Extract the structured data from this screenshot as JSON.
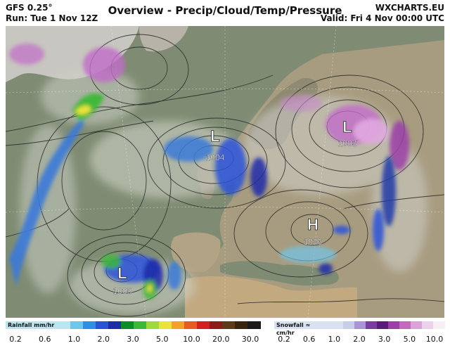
{
  "header": {
    "model": "GFS 0.25°",
    "run": "Run: Tue 1 Nov 12Z",
    "title": "Overview - Precip/Cloud/Temp/Pressure",
    "site": "WXCHARTS.EU",
    "valid": "Valid: Fri 4 Nov 00:00 UTC"
  },
  "pressure_systems": [
    {
      "type": "L",
      "value": "1004"
    },
    {
      "type": "L",
      "value": "1003"
    },
    {
      "type": "H",
      "value": "1026"
    },
    {
      "type": "L",
      "value": "1005"
    }
  ],
  "legend": {
    "rainfall": {
      "title": "Rainfall mm/hr",
      "colors": [
        "#b9e6ef",
        "#70c6ea",
        "#2f8ee6",
        "#2a52d8",
        "#1c2ba8",
        "#0e8c28",
        "#3fb83a",
        "#9fda3a",
        "#e8e43a",
        "#f2a227",
        "#ea5a24",
        "#d41f1f",
        "#8e1a1a",
        "#5c3a1a",
        "#3a2410",
        "#1a1a1a"
      ],
      "ticks": [
        "0.2",
        "0.6",
        "1.0",
        "2.0",
        "3.0",
        "5.0",
        "10.0",
        "20.0",
        "30.0"
      ]
    },
    "snowfall": {
      "title": "Snowfall ≈ cm/hr",
      "colors": [
        "#d9e2f2",
        "#c6cfe9",
        "#a795d6",
        "#7b3ca0",
        "#5a1a78",
        "#9b3ea8",
        "#c36ac0",
        "#dca3d9",
        "#edd0ec",
        "#f7eef6"
      ],
      "ticks": [
        "0.2",
        "0.6",
        "1.0",
        "2.0",
        "3.0",
        "5.0",
        "10.0"
      ]
    }
  },
  "colors": {
    "sea": "#7d8a70",
    "land": "#b9a98a",
    "isobar": "#2a2a2a",
    "snow": "#c06cc8",
    "rain_light": "#3a79d8",
    "rain_heavy": "#1c3aa8"
  }
}
